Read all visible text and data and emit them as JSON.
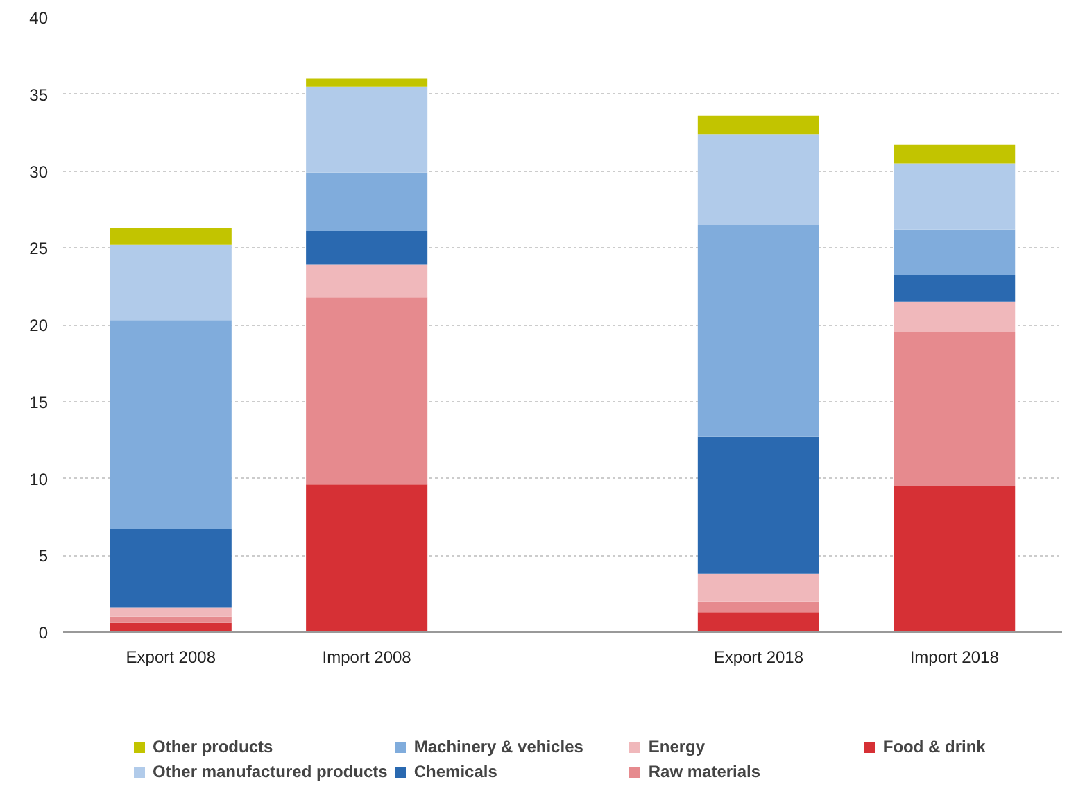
{
  "chart_data": {
    "type": "bar",
    "stacked": true,
    "categories": [
      "Export 2008",
      "Import 2008",
      null,
      "Export 2018",
      "Import 2018"
    ],
    "series": [
      {
        "name": "Food & drink",
        "color": "#d63035",
        "values": [
          0.6,
          9.6,
          null,
          1.3,
          9.5
        ]
      },
      {
        "name": "Raw materials",
        "color": "#e68a8e",
        "values": [
          0.4,
          12.2,
          null,
          0.7,
          10.0
        ]
      },
      {
        "name": "Energy",
        "color": "#f0b8bb",
        "values": [
          0.6,
          2.1,
          null,
          1.8,
          2.0
        ]
      },
      {
        "name": "Chemicals",
        "color": "#2a69b0",
        "values": [
          5.1,
          2.2,
          null,
          8.9,
          1.7
        ]
      },
      {
        "name": "Machinery & vehicles",
        "color": "#80acdc",
        "values": [
          13.6,
          3.8,
          null,
          13.8,
          3.0
        ]
      },
      {
        "name": "Other manufactured products",
        "color": "#b1cbea",
        "values": [
          4.9,
          5.6,
          null,
          5.9,
          4.3
        ]
      },
      {
        "name": "Other products",
        "color": "#c2c400",
        "values": [
          1.1,
          0.5,
          null,
          1.2,
          1.2
        ]
      }
    ],
    "ylim": [
      0,
      40
    ],
    "yticks": [
      0,
      5,
      10,
      15,
      20,
      25,
      30,
      35,
      40
    ],
    "grid": "y",
    "legend": "bottom"
  }
}
